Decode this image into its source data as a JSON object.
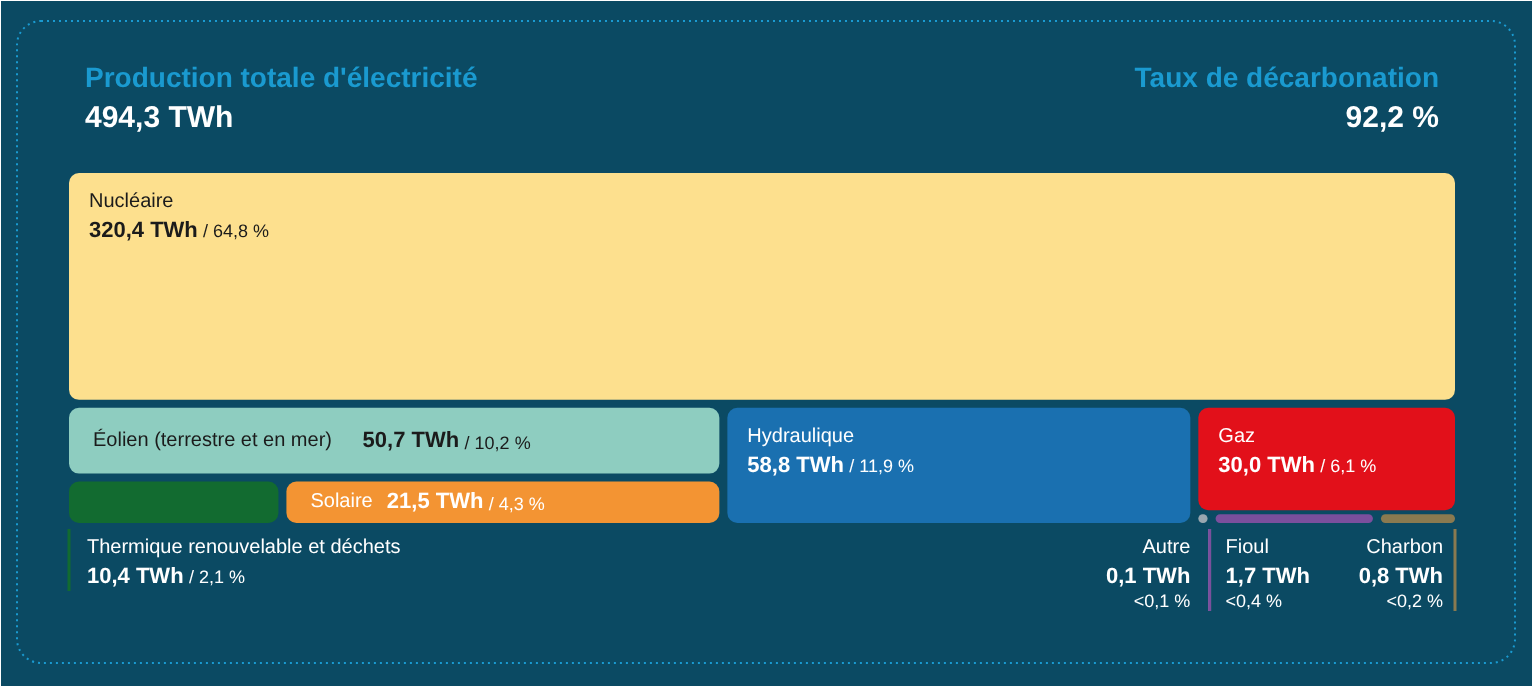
{
  "chart_data": {
    "type": "other",
    "title": "Production totale d'électricité",
    "subtitle": "494,3 TWh",
    "annotations": [
      "Taux de décarbonation",
      "92,2 %"
    ],
    "categories": [
      "Nucléaire",
      "Éolien (terrestre et en mer)",
      "Hydraulique",
      "Gaz",
      "Thermique renouvelable et déchets",
      "Solaire",
      "Autre",
      "Fioul",
      "Charbon"
    ],
    "values": [
      320.4,
      50.7,
      58.8,
      30.0,
      10.4,
      21.5,
      0.1,
      1.7,
      0.8
    ],
    "colors": [
      "#fde08e",
      "#8ecdc0",
      "#1a70b0",
      "#e2101a",
      "#126b30",
      "#f39433",
      "#9aa7b0",
      "#7b4f9d",
      "#8a7a50"
    ],
    "value_labels": [
      "320,4 TWh / 64,8 %",
      "50,7 TWh / 10,2 %",
      "58,8 TWh / 11,9 %",
      "30,0 TWh / 6,1 %",
      "10,4 TWh / 2,1 %",
      "21,5 TWh / 4,3 %",
      "0,1 TWh\n<0,1 %",
      "1,7 TWh\n<0,4 %",
      "0,8 TWh\n<0,2 %"
    ]
  }
}
